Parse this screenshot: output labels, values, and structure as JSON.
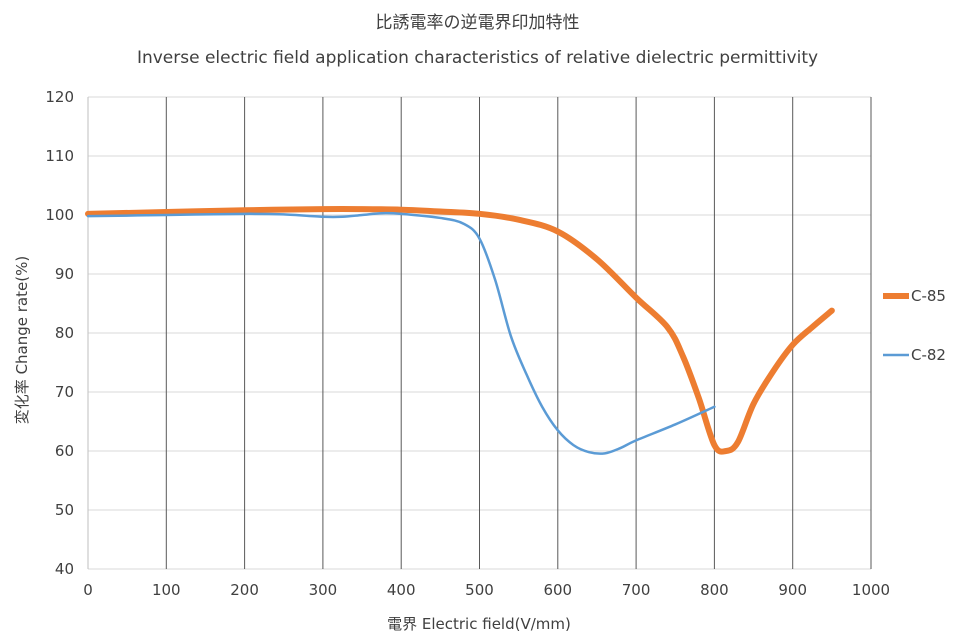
{
  "chart_data": {
    "type": "line",
    "title": "比誘電率の逆電界印加特性",
    "subtitle": "Inverse electric field application characteristics of relative dielectric permittivity",
    "xlabel": "電界 Electric field(V/mm)",
    "ylabel": "変化率 Change rate(%)",
    "xlim": [
      0,
      1000
    ],
    "ylim": [
      40,
      120
    ],
    "xticks": [
      "0",
      "100",
      "200",
      "300",
      "400",
      "500",
      "600",
      "700",
      "800",
      "900",
      "1000"
    ],
    "yticks": [
      "40",
      "50",
      "60",
      "70",
      "80",
      "90",
      "100",
      "110",
      "120"
    ],
    "grid": true,
    "legend_position": "right",
    "series": [
      {
        "name": "C-85",
        "color": "#ED7D31",
        "x": [
          0,
          100,
          200,
          300,
          350,
          400,
          450,
          500,
          550,
          600,
          650,
          700,
          740,
          760,
          780,
          800,
          815,
          830,
          850,
          875,
          900,
          925,
          950
        ],
        "y": [
          100.2,
          100.5,
          100.8,
          101.0,
          101.0,
          100.9,
          100.6,
          100.2,
          99.2,
          97.2,
          92.5,
          86.0,
          81.0,
          76.0,
          69.0,
          61.0,
          60.0,
          61.5,
          68.0,
          73.5,
          78.0,
          81.0,
          83.8
        ]
      },
      {
        "name": "C-82",
        "color": "#5B9BD5",
        "x": [
          0,
          100,
          200,
          250,
          300,
          325,
          350,
          375,
          400,
          450,
          480,
          500,
          520,
          540,
          560,
          580,
          600,
          620,
          640,
          660,
          680,
          700,
          750,
          800
        ],
        "y": [
          99.8,
          100.0,
          100.2,
          100.1,
          99.7,
          99.7,
          100.0,
          100.3,
          100.2,
          99.5,
          98.5,
          96.0,
          89.0,
          79.5,
          73.0,
          67.5,
          63.5,
          61.0,
          59.8,
          59.6,
          60.5,
          61.8,
          64.5,
          67.5
        ]
      }
    ]
  }
}
